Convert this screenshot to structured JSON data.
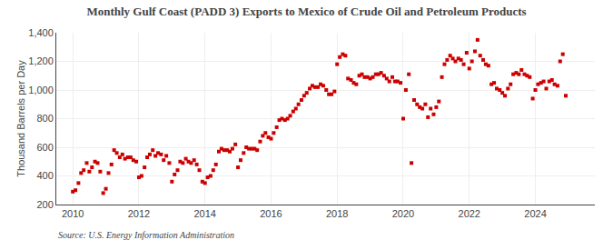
{
  "chart_data": {
    "type": "scatter",
    "title": "Monthly Gulf Coast (PADD 3) Exports to Mexico of Crude Oil and Petroleum Products",
    "ylabel": "Thousand Barrels per Day",
    "annotations": [
      "Source: U.S. Energy Information Administration"
    ],
    "color": "#cc0000",
    "marker": "square",
    "grid": true,
    "xlim": [
      2009.5,
      2025.8
    ],
    "xticks": [
      2010,
      2012,
      2014,
      2016,
      2018,
      2020,
      2022,
      2024
    ],
    "ylim": [
      200,
      1400
    ],
    "yticks": [
      200,
      400,
      600,
      800,
      {
        "value": 1000,
        "label": "1,000"
      },
      {
        "value": 1200,
        "label": "1,200"
      },
      {
        "value": 1400,
        "label": "1,400"
      }
    ],
    "x": [
      2010.0,
      2010.08,
      2010.17,
      2010.25,
      2010.33,
      2010.42,
      2010.5,
      2010.58,
      2010.67,
      2010.75,
      2010.83,
      2010.92,
      2011.0,
      2011.08,
      2011.17,
      2011.25,
      2011.33,
      2011.42,
      2011.5,
      2011.58,
      2011.67,
      2011.75,
      2011.83,
      2011.92,
      2012.0,
      2012.08,
      2012.17,
      2012.25,
      2012.33,
      2012.42,
      2012.5,
      2012.58,
      2012.67,
      2012.75,
      2012.83,
      2012.92,
      2013.0,
      2013.08,
      2013.17,
      2013.25,
      2013.33,
      2013.42,
      2013.5,
      2013.58,
      2013.67,
      2013.75,
      2013.83,
      2013.92,
      2014.0,
      2014.08,
      2014.17,
      2014.25,
      2014.33,
      2014.42,
      2014.5,
      2014.58,
      2014.67,
      2014.75,
      2014.83,
      2014.92,
      2015.0,
      2015.08,
      2015.17,
      2015.25,
      2015.33,
      2015.42,
      2015.5,
      2015.58,
      2015.67,
      2015.75,
      2015.83,
      2015.92,
      2016.0,
      2016.08,
      2016.17,
      2016.25,
      2016.33,
      2016.42,
      2016.5,
      2016.58,
      2016.67,
      2016.75,
      2016.83,
      2016.92,
      2017.0,
      2017.08,
      2017.17,
      2017.25,
      2017.33,
      2017.42,
      2017.5,
      2017.58,
      2017.67,
      2017.75,
      2017.83,
      2017.92,
      2018.0,
      2018.08,
      2018.17,
      2018.25,
      2018.33,
      2018.42,
      2018.5,
      2018.58,
      2018.67,
      2018.75,
      2018.83,
      2018.92,
      2019.0,
      2019.08,
      2019.17,
      2019.25,
      2019.33,
      2019.42,
      2019.5,
      2019.58,
      2019.67,
      2019.75,
      2019.83,
      2019.92,
      2020.0,
      2020.08,
      2020.17,
      2020.25,
      2020.33,
      2020.42,
      2020.5,
      2020.58,
      2020.67,
      2020.75,
      2020.83,
      2020.92,
      2021.0,
      2021.08,
      2021.17,
      2021.25,
      2021.33,
      2021.42,
      2021.5,
      2021.58,
      2021.67,
      2021.75,
      2021.83,
      2021.92,
      2022.0,
      2022.08,
      2022.17,
      2022.25,
      2022.33,
      2022.42,
      2022.5,
      2022.58,
      2022.67,
      2022.75,
      2022.83,
      2022.92,
      2023.0,
      2023.08,
      2023.17,
      2023.25,
      2023.33,
      2023.42,
      2023.5,
      2023.58,
      2023.67,
      2023.75,
      2023.83,
      2023.92,
      2024.0,
      2024.08,
      2024.17,
      2024.25,
      2024.33,
      2024.42,
      2024.5,
      2024.58,
      2024.67,
      2024.75,
      2024.83,
      2024.92
    ],
    "values": [
      290,
      300,
      350,
      420,
      440,
      490,
      430,
      460,
      500,
      490,
      430,
      280,
      310,
      420,
      480,
      580,
      560,
      530,
      550,
      520,
      530,
      530,
      510,
      500,
      390,
      400,
      460,
      530,
      550,
      580,
      540,
      560,
      550,
      510,
      540,
      490,
      360,
      410,
      440,
      500,
      490,
      520,
      500,
      490,
      510,
      480,
      440,
      360,
      350,
      390,
      400,
      440,
      480,
      570,
      590,
      580,
      580,
      570,
      590,
      620,
      460,
      510,
      560,
      600,
      590,
      590,
      590,
      580,
      640,
      680,
      700,
      670,
      660,
      700,
      740,
      790,
      800,
      790,
      800,
      820,
      850,
      870,
      900,
      930,
      960,
      980,
      1010,
      1030,
      1020,
      1020,
      1040,
      1030,
      1000,
      970,
      970,
      990,
      1180,
      1230,
      1250,
      1240,
      1080,
      1070,
      1050,
      1040,
      1100,
      1110,
      1090,
      1090,
      1080,
      1090,
      1110,
      1110,
      1120,
      1100,
      1080,
      1060,
      1090,
      1060,
      1060,
      1050,
      800,
      1000,
      1110,
      490,
      930,
      900,
      880,
      870,
      900,
      810,
      870,
      830,
      880,
      920,
      1090,
      1180,
      1210,
      1240,
      1220,
      1200,
      1220,
      1210,
      1180,
      1260,
      1150,
      1200,
      1270,
      1350,
      1240,
      1210,
      1180,
      1170,
      1040,
      1050,
      1010,
      1000,
      980,
      960,
      1010,
      1040,
      1110,
      1120,
      1110,
      1140,
      1110,
      1100,
      1090,
      940,
      1000,
      1040,
      1050,
      1060,
      1010,
      1060,
      1070,
      1040,
      1030,
      1200,
      1250,
      960
    ]
  }
}
